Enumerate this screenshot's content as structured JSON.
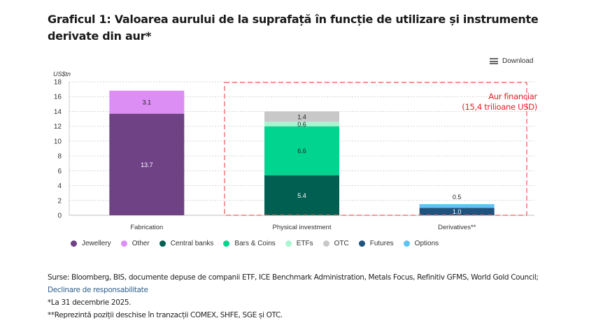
{
  "title": "Graficul 1: Valoarea aurului de la suprafață în funcție de utilizare și instrumente derivate din aur*",
  "download_label": "Download",
  "chart_data": {
    "type": "bar",
    "stacked": true,
    "ylabel": "US$tn",
    "ylim": [
      0,
      18
    ],
    "yticks": [
      0,
      2,
      4,
      6,
      8,
      10,
      12,
      14,
      16,
      18
    ],
    "grid": true,
    "categories": [
      "Fabrication",
      "Physical investment",
      "Derivatives**"
    ],
    "series": [
      {
        "name": "Jewellery",
        "color": "#6e4285",
        "values": [
          13.7,
          null,
          null
        ],
        "label_color": "#ffffff"
      },
      {
        "name": "Other",
        "color": "#dc8ef5",
        "values": [
          3.1,
          null,
          null
        ],
        "label_color": "#222222"
      },
      {
        "name": "Central banks",
        "color": "#005f50",
        "values": [
          null,
          5.4,
          null
        ],
        "label_color": "#ffffff"
      },
      {
        "name": "Bars & Coins",
        "color": "#00d48f",
        "values": [
          null,
          6.6,
          null
        ],
        "label_color": "#222222"
      },
      {
        "name": "ETFs",
        "color": "#a8f5d2",
        "values": [
          null,
          0.6,
          null
        ],
        "label_color": "#222222"
      },
      {
        "name": "OTC",
        "color": "#c8c8c8",
        "values": [
          null,
          1.4,
          null
        ],
        "label_color": "#222222"
      },
      {
        "name": "Futures",
        "color": "#20527e",
        "values": [
          null,
          null,
          1.0
        ],
        "label_color": "#ffffff"
      },
      {
        "name": "Options",
        "color": "#5ec3f5",
        "values": [
          null,
          null,
          0.5
        ],
        "label_color": "#222222",
        "label_outside": true
      }
    ],
    "annotation": {
      "lines": [
        "Aur financiar",
        "(15,4 trilioane USD)"
      ],
      "color": "#e8202a",
      "highlight_categories": [
        "Physical investment",
        "Derivatives**"
      ]
    },
    "legend_position": "bottom"
  },
  "footer": {
    "sources": "Surse: Bloomberg, BIS, documente depuse de companii ETF, ICE Benchmark Administration, Metals Focus, Refinitiv GFMS, World Gold Council;",
    "disclaimer_link": "Declinare de responsabilitate",
    "note1": "*La 31 decembrie 2025.",
    "note2": "**Reprezintă poziții deschise în tranzacții COMEX, SHFE, SGE și OTC."
  }
}
